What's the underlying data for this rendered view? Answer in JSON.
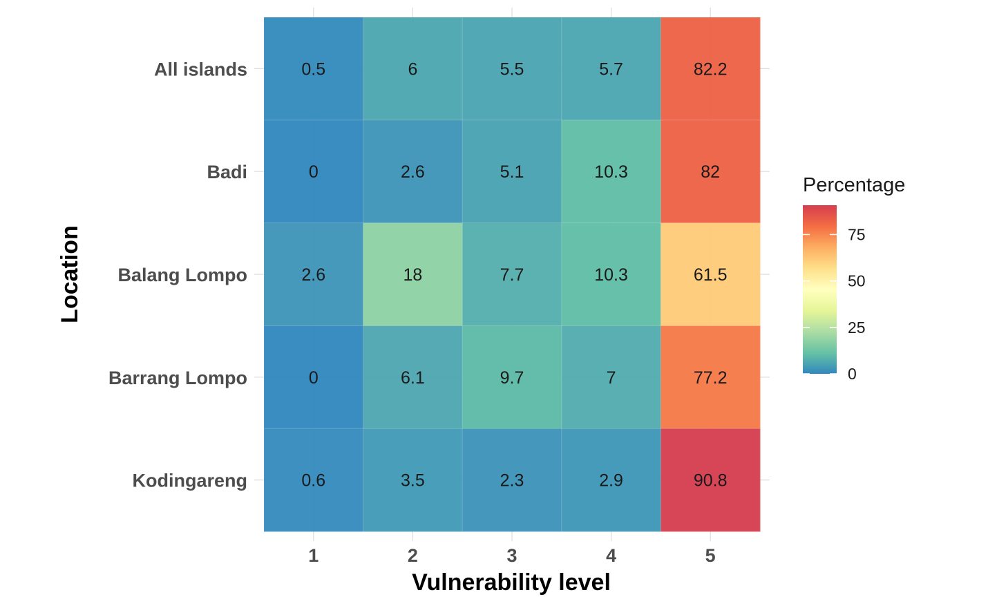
{
  "chart_data": {
    "type": "heatmap",
    "xlabel": "Vulnerability level",
    "ylabel": "Location",
    "x_categories": [
      "1",
      "2",
      "3",
      "4",
      "5"
    ],
    "y_categories": [
      "All islands",
      "Badi",
      "Balang Lompo",
      "Barrang Lompo",
      "Kodingareng"
    ],
    "values": [
      [
        0.5,
        6,
        5.5,
        5.7,
        82.2
      ],
      [
        0,
        2.6,
        5.1,
        10.3,
        82
      ],
      [
        2.6,
        18,
        7.7,
        10.3,
        61.5
      ],
      [
        0,
        6.1,
        9.7,
        7,
        77.2
      ],
      [
        0.6,
        3.5,
        2.3,
        2.9,
        90.8
      ]
    ],
    "value_labels": [
      [
        "0.5",
        "6",
        "5.5",
        "5.7",
        "82.2"
      ],
      [
        "0",
        "2.6",
        "5.1",
        "10.3",
        "82"
      ],
      [
        "2.6",
        "18",
        "7.7",
        "10.3",
        "61.5"
      ],
      [
        "0",
        "6.1",
        "9.7",
        "7",
        "77.2"
      ],
      [
        "0.6",
        "3.5",
        "2.3",
        "2.9",
        "90.8"
      ]
    ],
    "legend": {
      "title": "Percentage",
      "placement": "right",
      "ticks": [
        0,
        25,
        50,
        75
      ],
      "tick_labels": [
        "0",
        "25",
        "50",
        "75"
      ],
      "range": [
        0,
        90.8
      ]
    },
    "colorscale": [
      "#3288bd",
      "#66c2a5",
      "#abdda4",
      "#e6f598",
      "#ffffbf",
      "#fee08b",
      "#fdae61",
      "#f46d43",
      "#d53e4f"
    ],
    "grid": true
  }
}
